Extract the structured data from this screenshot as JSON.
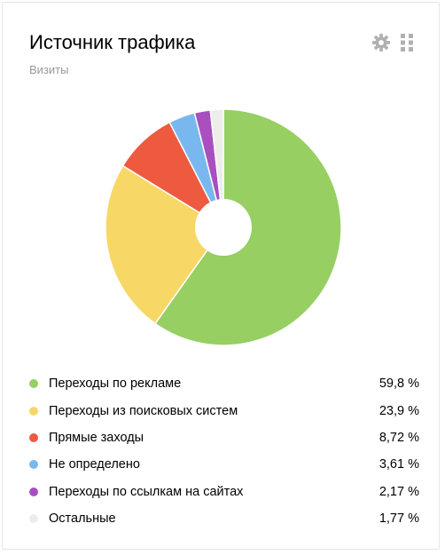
{
  "widget": {
    "title": "Источник трафика",
    "subtitle": "Визиты",
    "settings_icon": "gear-icon",
    "drag_icon": "drag-handle-icon"
  },
  "chart_data": {
    "type": "pie",
    "donut": true,
    "title": "Источник трафика",
    "subtitle": "Визиты",
    "legend_position": "bottom",
    "slices": [
      {
        "label": "Переходы по рекламе",
        "value": 59.8,
        "value_text": "59,8 %",
        "color": "#97cf63"
      },
      {
        "label": "Переходы из поисковых систем",
        "value": 23.9,
        "value_text": "23,9 %",
        "color": "#f7d867"
      },
      {
        "label": "Прямые заходы",
        "value": 8.72,
        "value_text": "8,72 %",
        "color": "#ed5a40"
      },
      {
        "label": "Не определено",
        "value": 3.61,
        "value_text": "3,61 %",
        "color": "#79b8ef"
      },
      {
        "label": "Переходы по ссылкам на сайтах",
        "value": 2.17,
        "value_text": "2,17 %",
        "color": "#a94fc0"
      },
      {
        "label": "Остальные",
        "value": 1.77,
        "value_text": "1,77 %",
        "color": "#ededea"
      }
    ]
  }
}
